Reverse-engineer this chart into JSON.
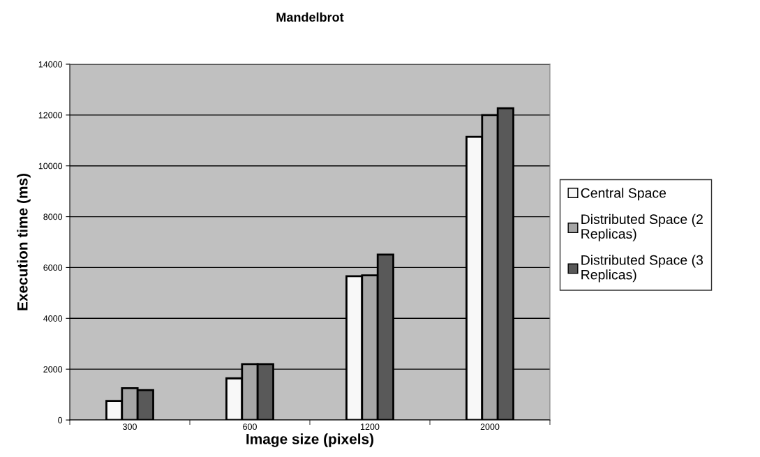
{
  "chart_data": {
    "type": "bar",
    "title": "Mandelbrot",
    "xlabel": "Image size (pixels)",
    "ylabel": "Execution time (ms)",
    "categories": [
      "300",
      "600",
      "1200",
      "2000"
    ],
    "series": [
      {
        "name": "Central Space",
        "color": "#f8f8f8",
        "values": [
          750,
          1640,
          5660,
          11140
        ]
      },
      {
        "name": "Distributed Space (2 Replicas)",
        "color": "#a6a6a6",
        "values": [
          1250,
          2200,
          5690,
          12000
        ]
      },
      {
        "name": "Distributed Space (3 Replicas)",
        "color": "#595959",
        "values": [
          1175,
          2200,
          6510,
          12270
        ]
      }
    ],
    "ylim": [
      0,
      14000
    ],
    "yticks": [
      0,
      2000,
      4000,
      6000,
      8000,
      10000,
      12000,
      14000
    ],
    "grid": "y",
    "legend": "right"
  }
}
